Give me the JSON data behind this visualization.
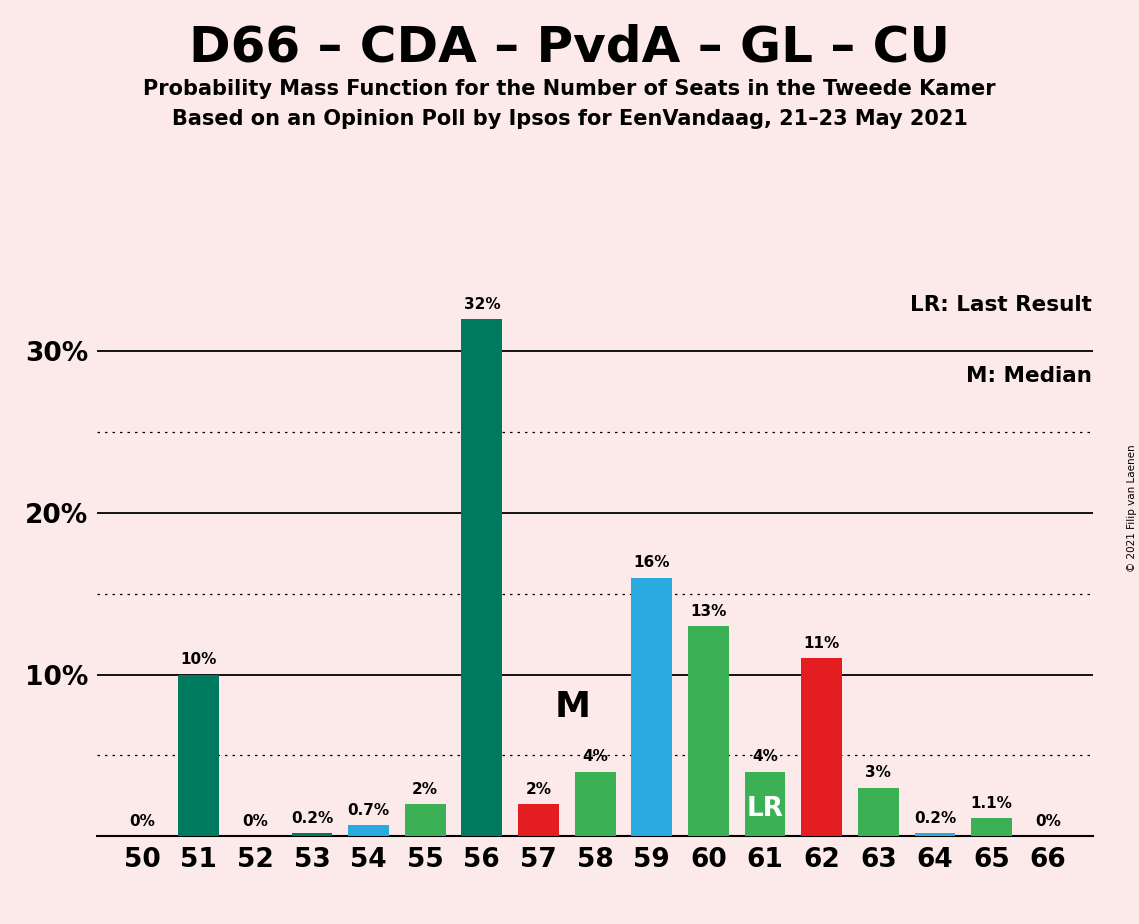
{
  "title": "D66 – CDA – PvdA – GL – CU",
  "subtitle1": "Probability Mass Function for the Number of Seats in the Tweede Kamer",
  "subtitle2": "Based on an Opinion Poll by Ipsos for EenVandaag, 21–23 May 2021",
  "copyright": "© 2021 Filip van Laenen",
  "seats": [
    50,
    51,
    52,
    53,
    54,
    55,
    56,
    57,
    58,
    59,
    60,
    61,
    62,
    63,
    64,
    65,
    66
  ],
  "values": [
    0.0,
    10.0,
    0.0,
    0.2,
    0.7,
    2.0,
    32.0,
    2.0,
    4.0,
    16.0,
    13.0,
    4.0,
    11.0,
    3.0,
    0.2,
    1.1,
    0.0
  ],
  "colors": [
    "#007A5E",
    "#007A5E",
    "#007A5E",
    "#007A5E",
    "#29ABE2",
    "#3CB054",
    "#007A5E",
    "#E41E20",
    "#3CB054",
    "#29ABE2",
    "#3CB054",
    "#3CB054",
    "#E41E20",
    "#3CB054",
    "#29ABE2",
    "#3CB054",
    "#3CB054"
  ],
  "labels": [
    "0%",
    "10%",
    "0%",
    "0.2%",
    "0.7%",
    "2%",
    "32%",
    "2%",
    "4%",
    "16%",
    "13%",
    "4%",
    "11%",
    "3%",
    "0.2%",
    "1.1%",
    "0%"
  ],
  "median_seat": 58,
  "lr_seat": 61,
  "background_color": "#FCEAEA",
  "ylim_max": 34,
  "solid_yticks": [
    10,
    20,
    30
  ],
  "dotted_yticks": [
    5,
    15,
    25
  ],
  "legend_lr": "LR: Last Result",
  "legend_m": "M: Median",
  "bar_width": 0.72
}
